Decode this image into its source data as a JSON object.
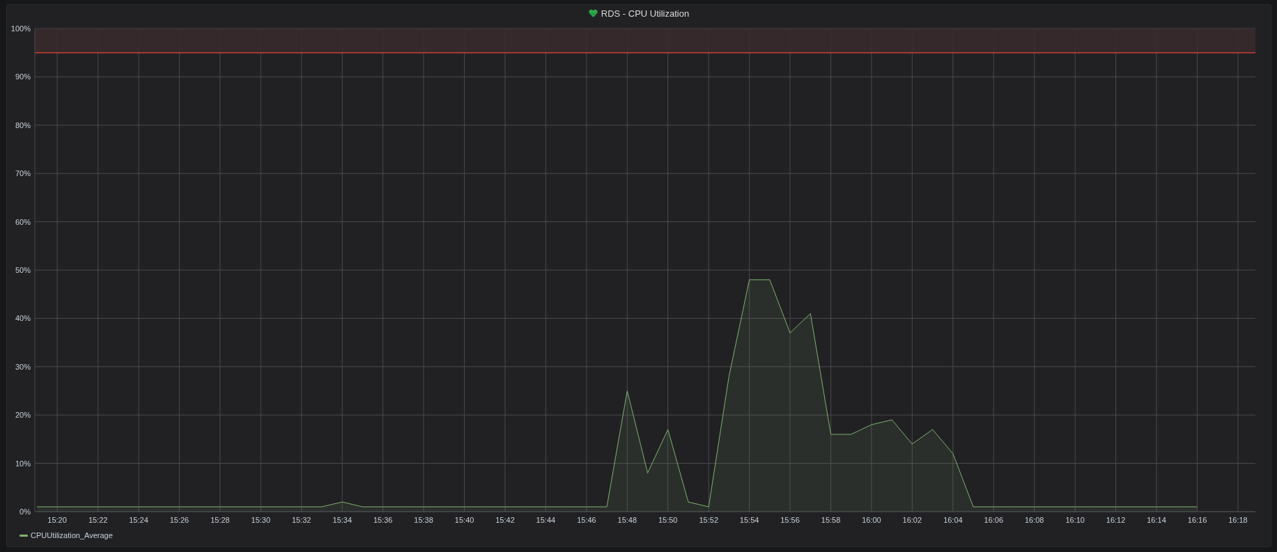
{
  "chart_data": {
    "type": "area",
    "title": "RDS - CPU Utilization",
    "x": [
      15.3167,
      15.3333,
      15.35,
      15.3667,
      15.3833,
      15.4,
      15.4167,
      15.4333,
      15.45,
      15.4667,
      15.4833,
      15.5,
      15.5167,
      15.5333,
      15.55,
      15.5667,
      15.5833,
      15.6,
      15.6167,
      15.6333,
      15.65,
      15.6667,
      15.6833,
      15.7,
      15.7167,
      15.7333,
      15.75,
      15.7667,
      15.7833,
      15.8,
      15.8167,
      15.8333,
      15.85,
      15.8667,
      15.8833,
      15.9,
      15.9167,
      15.9333,
      15.95,
      15.9667,
      15.9833,
      16,
      16.0167,
      16.0333,
      16.05,
      16.0667,
      16.0833,
      16.1,
      16.1167,
      16.1333,
      16.15,
      16.1667,
      16.1833,
      16.2,
      16.2167,
      16.2333,
      16.25,
      16.2667
    ],
    "series": [
      {
        "name": "CPUUtilization_Average",
        "color": "#7eb26d",
        "values": [
          1,
          1,
          1,
          1,
          1,
          1,
          1,
          1,
          1,
          1,
          1,
          1,
          1,
          1,
          1,
          2,
          1,
          1,
          1,
          1,
          1,
          1,
          1,
          1,
          1,
          1,
          1,
          1,
          1,
          25,
          8,
          17,
          2,
          1,
          28,
          48,
          48,
          37,
          41,
          16,
          16,
          18,
          19,
          14,
          17,
          12,
          1,
          1,
          1,
          1,
          1,
          1,
          1,
          1,
          1,
          1,
          1,
          1
        ]
      }
    ],
    "xlim": [
      15.315,
      16.3143
    ],
    "xticks": [
      {
        "value": 15.3333,
        "label": "15:20"
      },
      {
        "value": 15.3667,
        "label": "15:22"
      },
      {
        "value": 15.4,
        "label": "15:24"
      },
      {
        "value": 15.4333,
        "label": "15:26"
      },
      {
        "value": 15.4667,
        "label": "15:28"
      },
      {
        "value": 15.5,
        "label": "15:30"
      },
      {
        "value": 15.5333,
        "label": "15:32"
      },
      {
        "value": 15.5667,
        "label": "15:34"
      },
      {
        "value": 15.6,
        "label": "15:36"
      },
      {
        "value": 15.6333,
        "label": "15:38"
      },
      {
        "value": 15.6667,
        "label": "15:40"
      },
      {
        "value": 15.7,
        "label": "15:42"
      },
      {
        "value": 15.7333,
        "label": "15:44"
      },
      {
        "value": 15.7667,
        "label": "15:46"
      },
      {
        "value": 15.8,
        "label": "15:48"
      },
      {
        "value": 15.8333,
        "label": "15:50"
      },
      {
        "value": 15.8667,
        "label": "15:52"
      },
      {
        "value": 15.9,
        "label": "15:54"
      },
      {
        "value": 15.9333,
        "label": "15:56"
      },
      {
        "value": 15.9667,
        "label": "15:58"
      },
      {
        "value": 16,
        "label": "16:00"
      },
      {
        "value": 16.0333,
        "label": "16:02"
      },
      {
        "value": 16.0667,
        "label": "16:04"
      },
      {
        "value": 16.1,
        "label": "16:06"
      },
      {
        "value": 16.1333,
        "label": "16:08"
      },
      {
        "value": 16.1667,
        "label": "16:10"
      },
      {
        "value": 16.2,
        "label": "16:12"
      },
      {
        "value": 16.2333,
        "label": "16:14"
      },
      {
        "value": 16.2667,
        "label": "16:16"
      },
      {
        "value": 16.3,
        "label": "16:18"
      }
    ],
    "ylim": [
      0,
      100
    ],
    "yticks": [
      {
        "value": 0,
        "label": "0%"
      },
      {
        "value": 10,
        "label": "10%"
      },
      {
        "value": 20,
        "label": "20%"
      },
      {
        "value": 30,
        "label": "30%"
      },
      {
        "value": 40,
        "label": "40%"
      },
      {
        "value": 50,
        "label": "50%"
      },
      {
        "value": 60,
        "label": "60%"
      },
      {
        "value": 70,
        "label": "70%"
      },
      {
        "value": 80,
        "label": "80%"
      },
      {
        "value": 90,
        "label": "90%"
      },
      {
        "value": 100,
        "label": "100%"
      }
    ],
    "bands": [
      {
        "axis": "y",
        "from": 95,
        "to": 100,
        "color": "#3a2a2e"
      }
    ],
    "ref_lines": [
      {
        "axis": "y",
        "value": 95,
        "color": "#c8412f"
      }
    ],
    "grid": true,
    "legend": "bottom left"
  }
}
